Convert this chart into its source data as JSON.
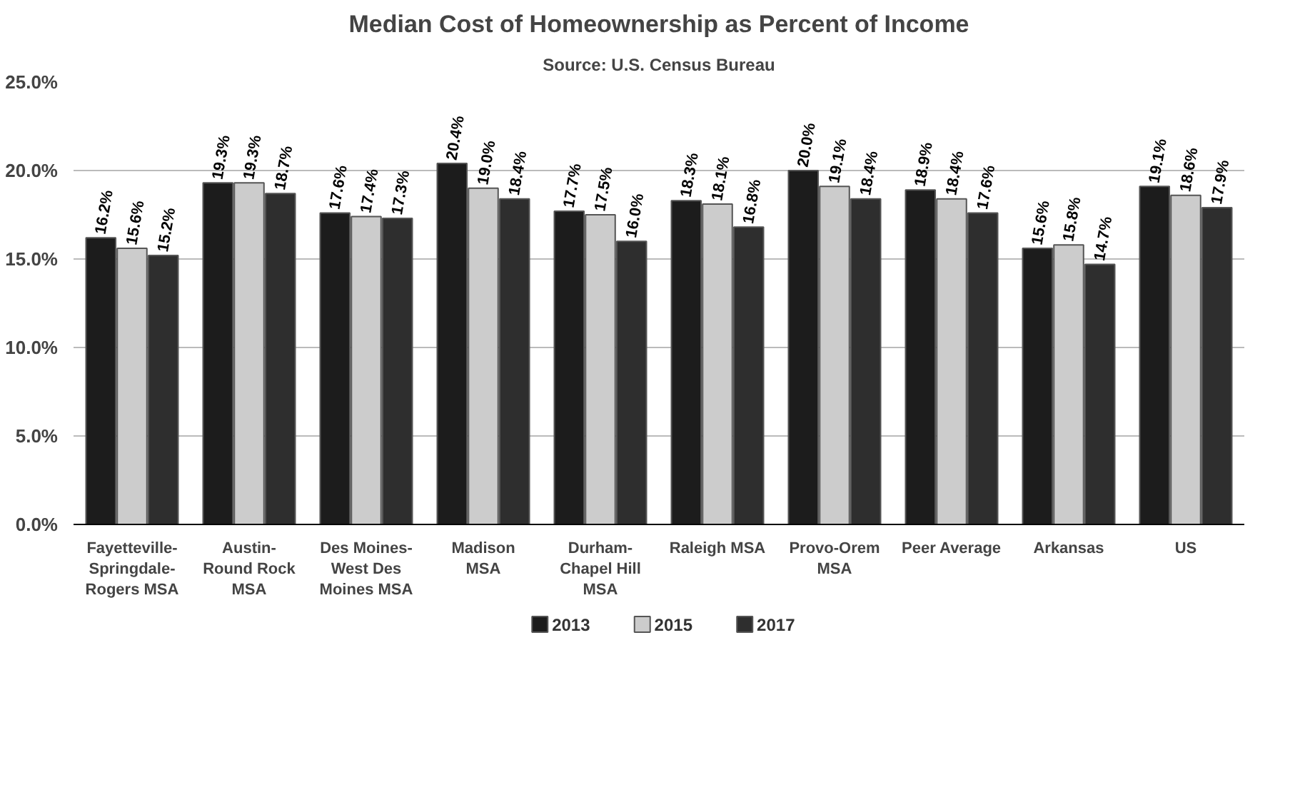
{
  "chart_data": {
    "type": "bar",
    "title": "Median Cost of Homeownership as Percent of Income",
    "subtitle": "Source: U.S. Census Bureau",
    "categories": [
      "Fayetteville-\nSpringdale-\nRogers MSA",
      "Austin-\nRound Rock\nMSA",
      "Des Moines-\nWest Des\nMoines MSA",
      "Madison\nMSA",
      "Durham-\nChapel Hill\nMSA",
      "Raleigh MSA",
      "Provo-Orem\nMSA",
      "Peer Average",
      "Arkansas",
      "US"
    ],
    "series": [
      {
        "name": "2013",
        "color": "#1c1c1c",
        "values": [
          16.2,
          19.3,
          17.6,
          20.4,
          17.7,
          18.3,
          20.0,
          18.9,
          15.6,
          19.1
        ],
        "value_labels": [
          "16.2%",
          "19.3%",
          "17.6%",
          "20.4%",
          "17.7%",
          "18.3%",
          "20.0%",
          "18.9%",
          "15.6%",
          "19.1%"
        ]
      },
      {
        "name": "2015",
        "color": "#cccccc",
        "values": [
          15.6,
          19.3,
          17.4,
          19.0,
          17.5,
          18.1,
          19.1,
          18.4,
          15.8,
          18.6
        ],
        "value_labels": [
          "15.6%",
          "19.3%",
          "17.4%",
          "19.0%",
          "17.5%",
          "18.1%",
          "19.1%",
          "18.4%",
          "15.8%",
          "18.6%"
        ]
      },
      {
        "name": "2017",
        "color": "#2e2e2e",
        "values": [
          15.2,
          18.7,
          17.3,
          18.4,
          16.0,
          16.8,
          18.4,
          17.6,
          14.7,
          17.9
        ],
        "value_labels": [
          "15.2%",
          "18.7%",
          "17.3%",
          "18.4%",
          "16.0%",
          "16.8%",
          "18.4%",
          "17.6%",
          "14.7%",
          "17.9%"
        ]
      }
    ],
    "ylim": [
      0,
      25
    ],
    "yticks": [
      {
        "value": 0,
        "label": "0.0%"
      },
      {
        "value": 5,
        "label": "5.0%"
      },
      {
        "value": 10,
        "label": "10.0%"
      },
      {
        "value": 15,
        "label": "15.0%"
      },
      {
        "value": 20,
        "label": "20.0%"
      },
      {
        "value": 25,
        "label": "25.0%"
      }
    ],
    "data_labels": true,
    "grid": "y",
    "legend": "bottom"
  }
}
